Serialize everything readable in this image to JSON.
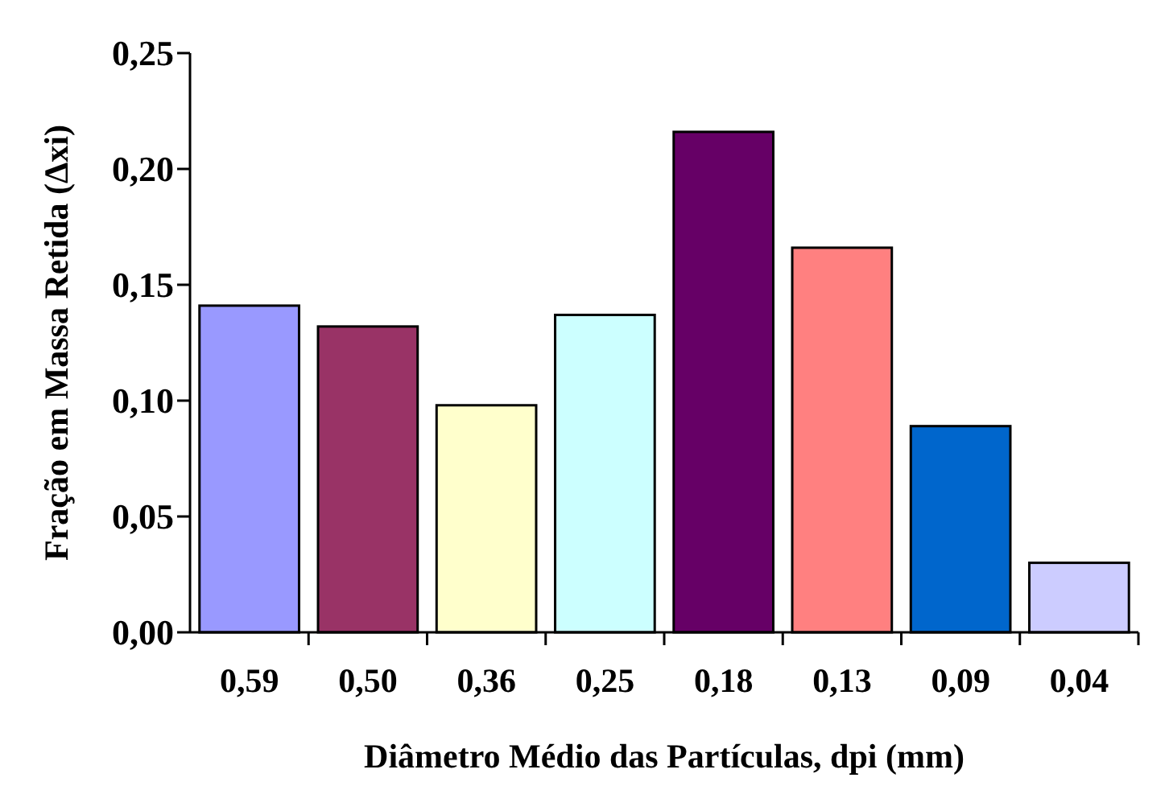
{
  "chart_data": {
    "type": "bar",
    "xlabel": "Diâmetro Médio das Partículas, dpi (mm)",
    "ylabel": "Fração em Massa Retida (Δxi)",
    "categories": [
      "0,59",
      "0,50",
      "0,36",
      "0,25",
      "0,18",
      "0,13",
      "0,09",
      "0,04"
    ],
    "values": [
      0.141,
      0.132,
      0.098,
      0.137,
      0.216,
      0.166,
      0.089,
      0.03
    ],
    "colors": [
      "#9999ff",
      "#993366",
      "#ffffcc",
      "#ccffff",
      "#660066",
      "#ff8080",
      "#0066cc",
      "#ccccff"
    ],
    "ylim": [
      0,
      0.25
    ],
    "yticks": [
      {
        "value": 0,
        "label": "0,00"
      },
      {
        "value": 0.05,
        "label": "0,05"
      },
      {
        "value": 0.1,
        "label": "0,10"
      },
      {
        "value": 0.15,
        "label": "0,15"
      },
      {
        "value": 0.2,
        "label": "0,20"
      },
      {
        "value": 0.25,
        "label": "0,25"
      }
    ]
  }
}
